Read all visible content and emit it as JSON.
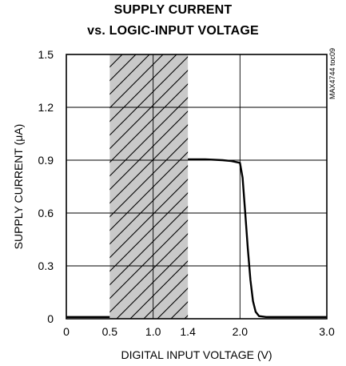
{
  "chart_data": {
    "type": "line",
    "title_lines": [
      "SUPPLY CURRENT",
      "vs. LOGIC-INPUT VOLTAGE"
    ],
    "xlabel": "DIGITAL INPUT VOLTAGE (V)",
    "ylabel": "SUPPLY CURRENT (μA)",
    "xlim": [
      0,
      3.0
    ],
    "ylim": [
      0,
      1.5
    ],
    "x_ticks": [
      {
        "value": 0,
        "label": "0"
      },
      {
        "value": 0.5,
        "label": "0.5"
      },
      {
        "value": 1.0,
        "label": "1.0"
      },
      {
        "value": 1.4,
        "label": "1.4"
      },
      {
        "value": 2.0,
        "label": "2.0"
      },
      {
        "value": 3.0,
        "label": "3.0"
      }
    ],
    "y_ticks": [
      {
        "value": 0,
        "label": "0"
      },
      {
        "value": 0.3,
        "label": "0.3"
      },
      {
        "value": 0.6,
        "label": "0.6"
      },
      {
        "value": 0.9,
        "label": "0.9"
      },
      {
        "value": 1.2,
        "label": "1.2"
      },
      {
        "value": 1.5,
        "label": "1.5"
      }
    ],
    "x_gridlines": [
      1.0,
      2.0
    ],
    "y_gridlines": [
      0.3,
      0.6,
      0.9,
      1.2
    ],
    "shaded_region": {
      "x": [
        0.5,
        1.4
      ],
      "fill": "#cccccc",
      "hatch": true
    },
    "annotation": "MAX4744 toc09",
    "series": [
      {
        "segments": [
          [
            [
              0.0,
              0.01
            ],
            [
              0.5,
              0.01
            ]
          ],
          [
            [
              1.4,
              0.905
            ],
            [
              1.6,
              0.905
            ],
            [
              1.8,
              0.9
            ],
            [
              1.9,
              0.895
            ],
            [
              2.0,
              0.885
            ],
            [
              2.03,
              0.8
            ],
            [
              2.06,
              0.6
            ],
            [
              2.09,
              0.4
            ],
            [
              2.12,
              0.22
            ],
            [
              2.15,
              0.1
            ],
            [
              2.18,
              0.04
            ],
            [
              2.22,
              0.015
            ],
            [
              2.3,
              0.01
            ],
            [
              2.6,
              0.01
            ],
            [
              3.0,
              0.01
            ]
          ]
        ]
      }
    ]
  }
}
